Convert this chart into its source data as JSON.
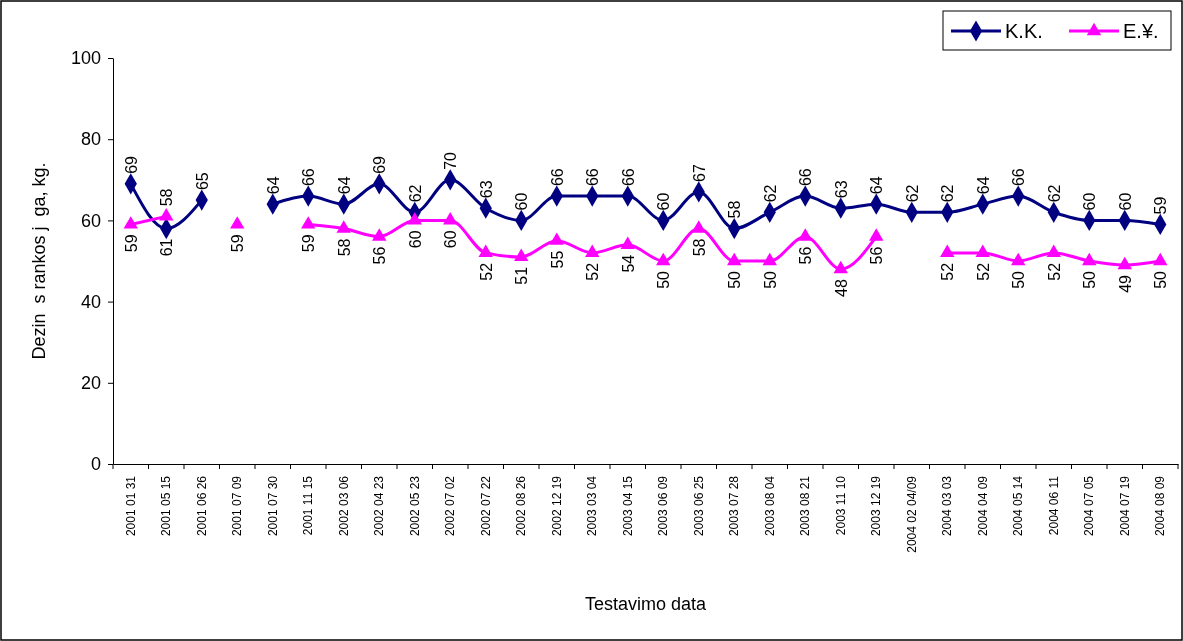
{
  "chart_data": {
    "type": "line",
    "xlabel": "Testavimo data",
    "ylabel": "Dezin  s rankos j  ga, kg.",
    "categories": [
      "2001 01 31",
      "2001 05 15",
      "2001 06 26",
      "2001 07 09",
      "2001 07 30",
      "2001 11 15",
      "2002 03 06",
      "2002 04 23",
      "2002 05 23",
      "2002 07 02",
      "2002 07 22",
      "2002 08 26",
      "2002 12 19",
      "2003 03 04",
      "2003 04 15",
      "2003 06 09",
      "2003 06 25",
      "2003 07 28",
      "2003 08 04",
      "2003 08 21",
      "2003 11 10",
      "2003 12 19",
      "2004 02 04/09",
      "2004 03 03",
      "2004 04 09",
      "2004 05 14",
      "2004 06 11",
      "2004 07 05",
      "2004 07 19",
      "2004 08 09"
    ],
    "series": [
      {
        "name": "K.K.",
        "color": "#000080",
        "marker": "diamond",
        "values": [
          69,
          58,
          65,
          null,
          64,
          66,
          64,
          69,
          62,
          70,
          63,
          60,
          66,
          66,
          66,
          60,
          67,
          58,
          62,
          66,
          63,
          64,
          62,
          62,
          64,
          66,
          62,
          60,
          60,
          59
        ]
      },
      {
        "name": "E.¥.",
        "color": "#ff00ff",
        "marker": "triangle",
        "values": [
          59,
          61,
          null,
          59,
          null,
          59,
          58,
          56,
          60,
          60,
          52,
          51,
          55,
          52,
          54,
          50,
          58,
          50,
          50,
          56,
          48,
          56,
          null,
          52,
          52,
          50,
          52,
          50,
          49,
          50
        ]
      }
    ],
    "ylim": [
      0,
      100
    ],
    "yticks": [
      0,
      20,
      40,
      60,
      80,
      100
    ],
    "grid": false,
    "legend": "top right",
    "data_labels": true,
    "line_style": "solid"
  }
}
